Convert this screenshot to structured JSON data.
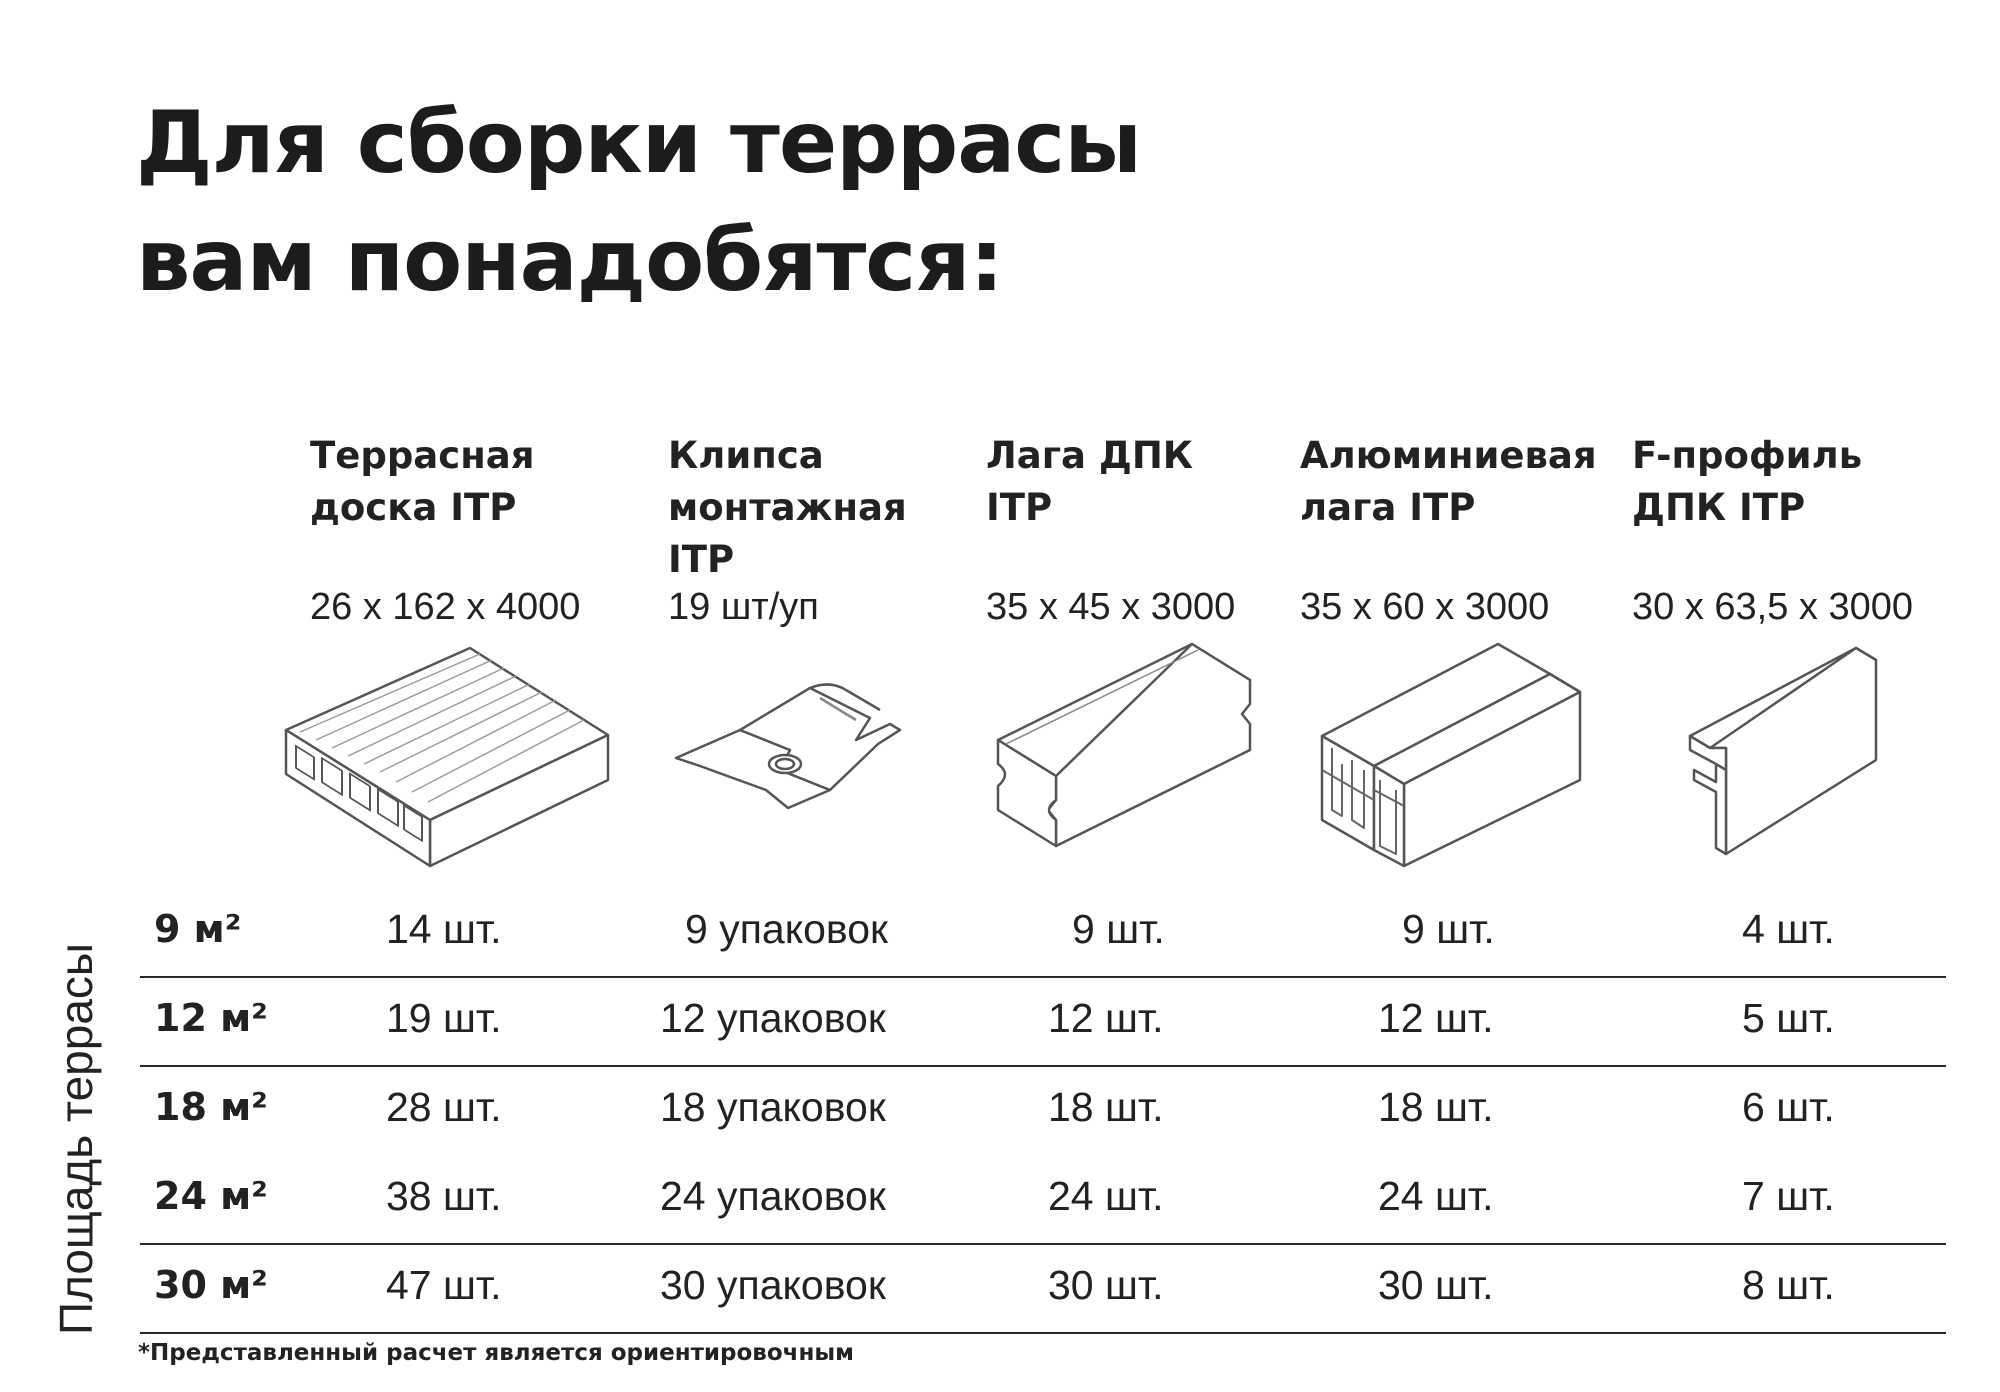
{
  "title": {
    "line1": "Для сборки террасы",
    "line2": "вам понадобятся:"
  },
  "columns": [
    {
      "name_lines": [
        "Террасная",
        "доска ITP"
      ],
      "spec": "26 х 162 х 4000",
      "icon": "decking-board-icon"
    },
    {
      "name_lines": [
        "Клипса",
        "монтажная",
        "ITP"
      ],
      "spec": "19 шт/уп",
      "icon": "mounting-clip-icon"
    },
    {
      "name_lines": [
        "Лага ДПК",
        "ITP"
      ],
      "spec": "35 х 45 х 3000",
      "icon": "wpc-joist-icon"
    },
    {
      "name_lines": [
        "Алюминиевая",
        "лага ITP"
      ],
      "spec": "35 х 60 х 3000",
      "icon": "aluminum-joist-icon"
    },
    {
      "name_lines": [
        "F-профиль",
        "ДПК ITP"
      ],
      "spec": "30 х 63,5 х 3000",
      "icon": "f-profile-icon"
    }
  ],
  "side_label": "Площадь террасы",
  "rows": [
    {
      "area": "9 м²",
      "values": [
        "14 шт.",
        "9 упаковок",
        "9 шт.",
        "9 шт.",
        "4 шт."
      ]
    },
    {
      "area": "12 м²",
      "values": [
        "19 шт.",
        "12 упаковок",
        "12 шт.",
        "12 шт.",
        "5 шт."
      ]
    },
    {
      "area": "18 м²",
      "values": [
        "28 шт.",
        "18 упаковок",
        "18 шт.",
        "18 шт.",
        "6 шт."
      ]
    },
    {
      "area": "24 м²",
      "values": [
        "38 шт.",
        "24 упаковок",
        "24 шт.",
        "24 шт.",
        "7 шт."
      ]
    },
    {
      "area": "30 м²",
      "values": [
        "47 шт.",
        "30 упаковок",
        "30 шт.",
        "30 шт.",
        "8 шт."
      ]
    }
  ],
  "footnote": "*Представленный расчет является ориентировочным"
}
